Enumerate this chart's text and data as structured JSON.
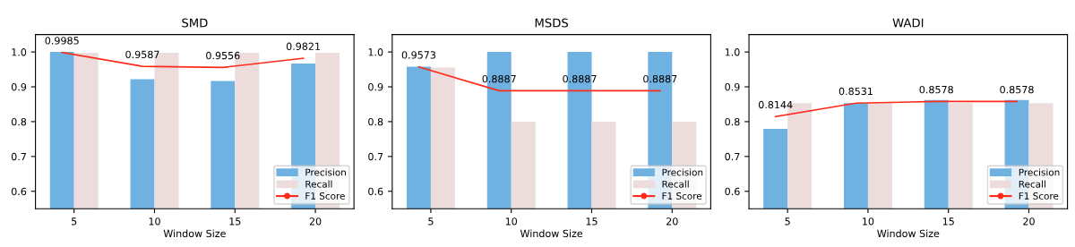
{
  "chart_data": [
    {
      "type": "bar",
      "title": "SMD",
      "xlabel": "Window Size",
      "categories": [
        "5",
        "10",
        "15",
        "20"
      ],
      "ylim": [
        0.55,
        1.05
      ],
      "yticks": [
        {
          "value": 0.6,
          "label": "0.6"
        },
        {
          "value": 0.7,
          "label": "0.7"
        },
        {
          "value": 0.8,
          "label": "0.8"
        },
        {
          "value": 0.9,
          "label": "0.9"
        },
        {
          "value": 1.0,
          "label": "1.0"
        }
      ],
      "legend": "bottom right",
      "grid": false,
      "series": [
        {
          "name": "Precision",
          "color": "#6fb1e1",
          "values": [
            1.0,
            0.922,
            0.917,
            0.967
          ]
        },
        {
          "name": "Recall",
          "color": "#ecdcdc",
          "values": [
            0.998,
            0.998,
            0.998,
            0.998
          ]
        },
        {
          "name": "F1 Score",
          "type": "line",
          "color": "#ff2a1a",
          "values": [
            0.9985,
            0.9587,
            0.9556,
            0.9821
          ],
          "value_labels": [
            "0.9985",
            "0.9587",
            "0.9556",
            "0.9821"
          ]
        }
      ]
    },
    {
      "type": "bar",
      "title": "MSDS",
      "xlabel": "Window Size",
      "categories": [
        "5",
        "10",
        "15",
        "20"
      ],
      "ylim": [
        0.55,
        1.05
      ],
      "yticks": [
        {
          "value": 0.6,
          "label": "0.6"
        },
        {
          "value": 0.7,
          "label": "0.7"
        },
        {
          "value": 0.8,
          "label": "0.8"
        },
        {
          "value": 0.9,
          "label": "0.9"
        },
        {
          "value": 1.0,
          "label": "1.0"
        }
      ],
      "legend": "bottom right",
      "grid": false,
      "series": [
        {
          "name": "Precision",
          "color": "#6fb1e1",
          "values": [
            0.958,
            1.0,
            1.0,
            1.0
          ]
        },
        {
          "name": "Recall",
          "color": "#ecdcdc",
          "values": [
            0.955,
            0.8,
            0.8,
            0.8
          ]
        },
        {
          "name": "F1 Score",
          "type": "line",
          "color": "#ff2a1a",
          "values": [
            0.9573,
            0.8887,
            0.8887,
            0.8887
          ],
          "value_labels": [
            "0.9573",
            "0.8887",
            "0.8887",
            "0.8887"
          ]
        }
      ]
    },
    {
      "type": "bar",
      "title": "WADI",
      "xlabel": "Window Size",
      "categories": [
        "5",
        "10",
        "15",
        "20"
      ],
      "ylim": [
        0.55,
        1.05
      ],
      "yticks": [
        {
          "value": 0.6,
          "label": "0.6"
        },
        {
          "value": 0.7,
          "label": "0.7"
        },
        {
          "value": 0.8,
          "label": "0.8"
        },
        {
          "value": 0.9,
          "label": "0.9"
        },
        {
          "value": 1.0,
          "label": "1.0"
        }
      ],
      "legend": "bottom right",
      "grid": false,
      "series": [
        {
          "name": "Precision",
          "color": "#6fb1e1",
          "values": [
            0.779,
            0.853,
            0.862,
            0.862
          ]
        },
        {
          "name": "Recall",
          "color": "#ecdcdc",
          "values": [
            0.853,
            0.853,
            0.853,
            0.853
          ]
        },
        {
          "name": "F1 Score",
          "type": "line",
          "color": "#ff2a1a",
          "values": [
            0.8144,
            0.8531,
            0.8578,
            0.8578
          ],
          "value_labels": [
            "0.8144",
            "0.8531",
            "0.8578",
            "0.8578"
          ]
        }
      ]
    }
  ]
}
